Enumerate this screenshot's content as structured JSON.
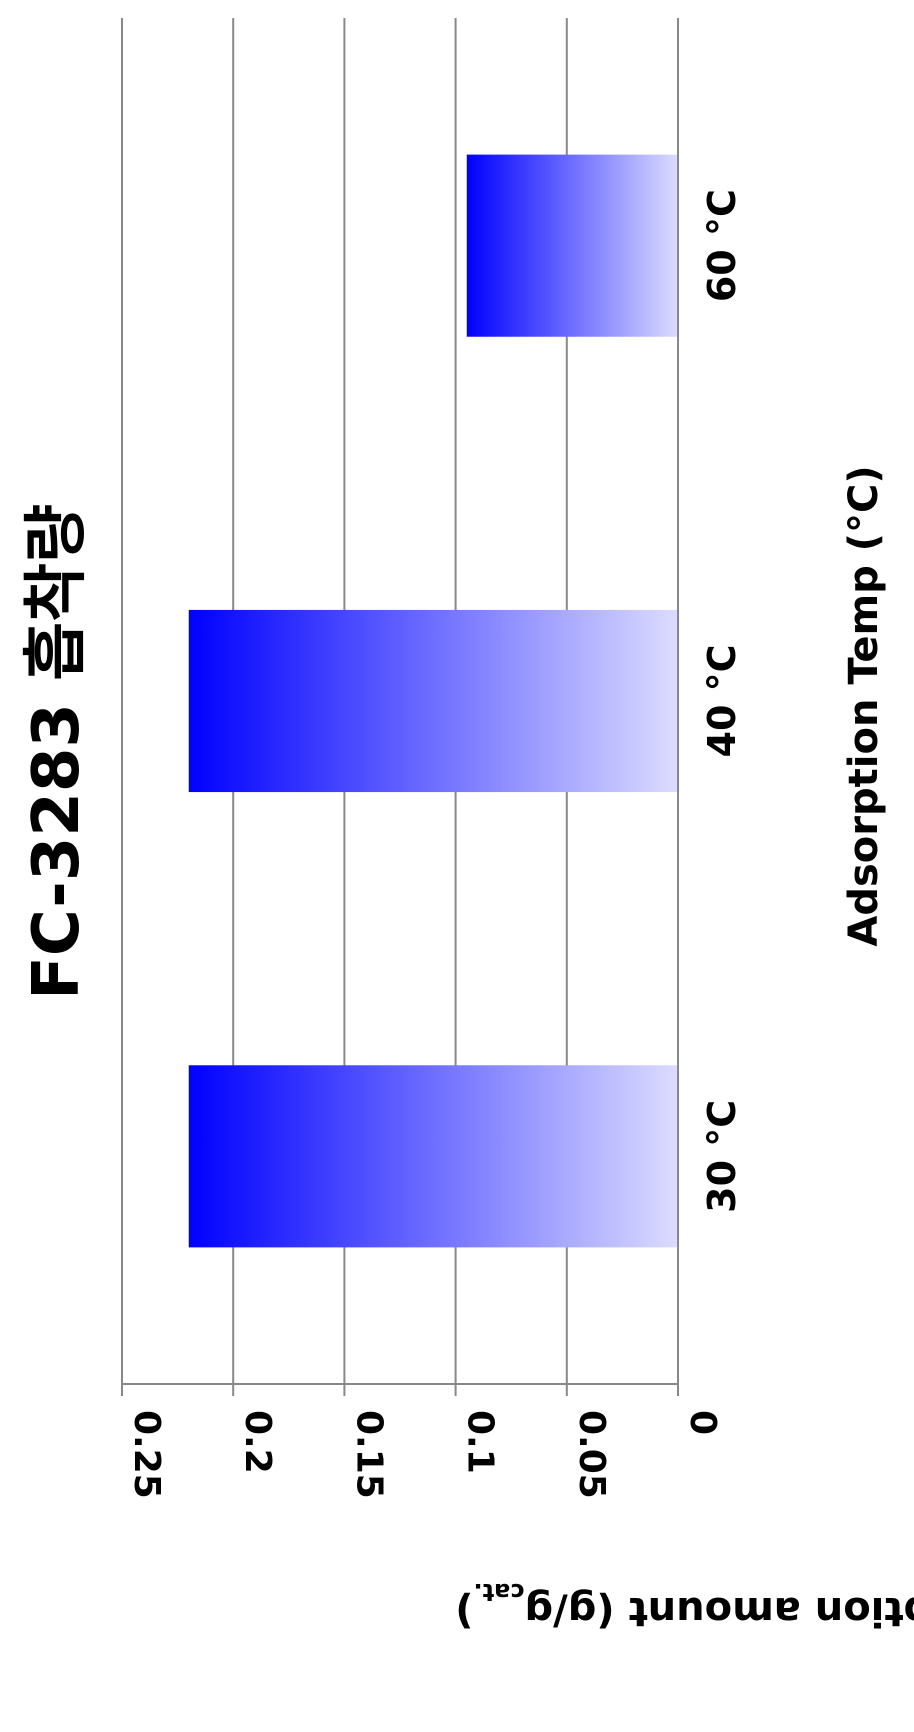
{
  "chart_data": {
    "type": "bar",
    "orientation": "rotated 90° clockwise (vertical bars drawn sideways)",
    "title": "FC-3283 흡착량",
    "xlabel": "Adsorption Temp (°C)",
    "ylabel": "adsorption amount  (g/g",
    "ylabel_subscript": "cat.",
    "ylabel_close": ")",
    "categories": [
      "30 °C",
      "40 °C",
      "60 °C"
    ],
    "values": [
      0.22,
      0.22,
      0.095
    ],
    "ylim": [
      0,
      0.25
    ],
    "yticks": [
      "0",
      "0.05",
      "0.1",
      "0.15",
      "0.2",
      "0.25"
    ],
    "grid": true,
    "legend": "none",
    "bar_color": "#0000ff",
    "bar_color_fade": "#dcdcff",
    "grid_color": "#888888"
  }
}
